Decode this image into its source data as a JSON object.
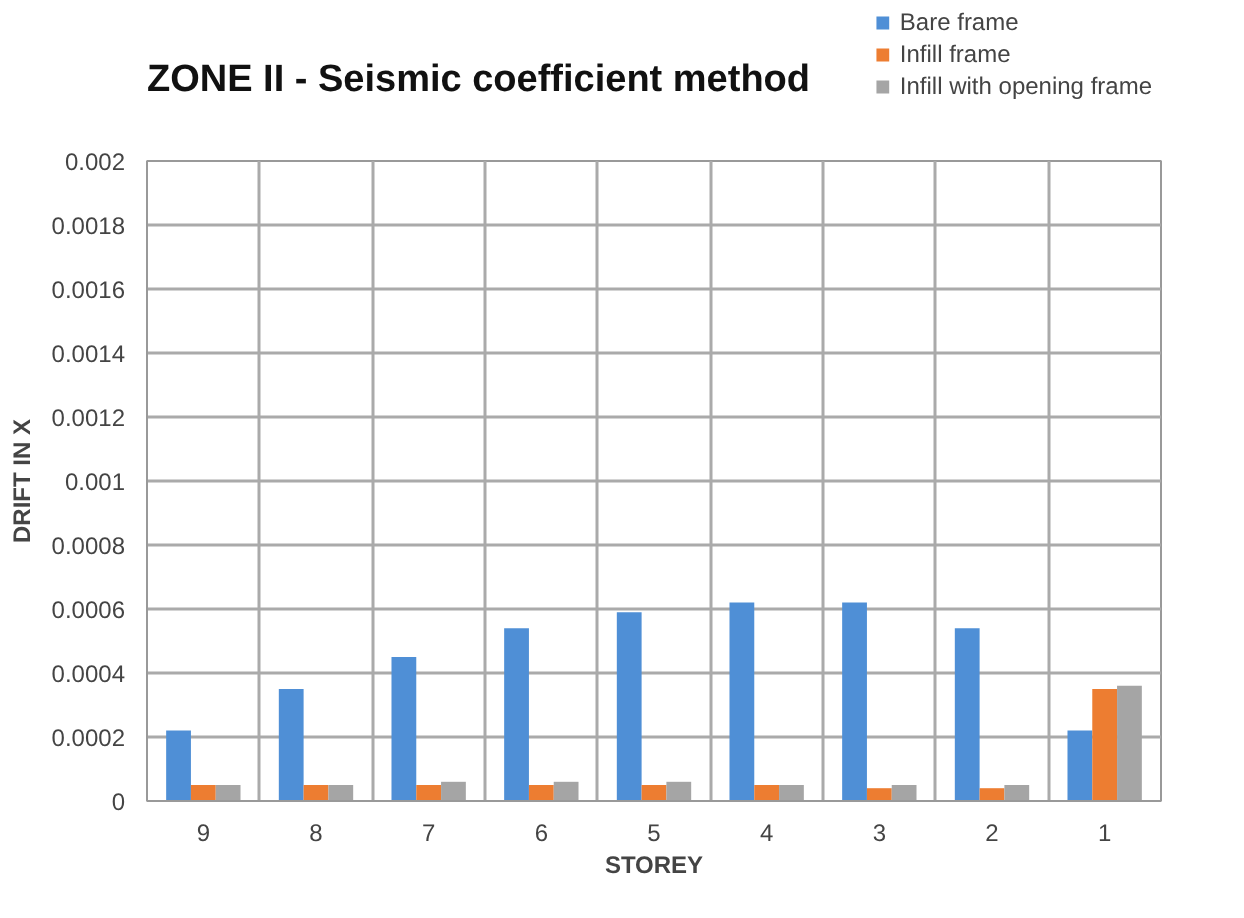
{
  "chart_data": {
    "type": "bar",
    "title": "ZONE II - Seismic coefficient method",
    "xlabel": "STOREY",
    "ylabel": "DRIFT IN X",
    "categories": [
      "9",
      "8",
      "7",
      "6",
      "5",
      "4",
      "3",
      "2",
      "1"
    ],
    "series": [
      {
        "name": "Bare frame",
        "color": "#4f8fd6",
        "values": [
          0.00022,
          0.00035,
          0.00045,
          0.00054,
          0.00059,
          0.00062,
          0.00062,
          0.00054,
          0.00022
        ]
      },
      {
        "name": "Infill frame",
        "color": "#ed7d31",
        "values": [
          5e-05,
          5e-05,
          5e-05,
          5e-05,
          5e-05,
          5e-05,
          4e-05,
          4e-05,
          0.00035
        ]
      },
      {
        "name": "Infill with opening frame",
        "color": "#a5a5a5",
        "values": [
          5e-05,
          5e-05,
          6e-05,
          6e-05,
          6e-05,
          5e-05,
          5e-05,
          5e-05,
          0.00036
        ]
      }
    ],
    "ylim": [
      0,
      0.002
    ],
    "yticks": [
      0,
      0.0002,
      0.0004,
      0.0006,
      0.0008,
      0.001,
      0.0012,
      0.0014,
      0.0016,
      0.0018,
      0.002
    ],
    "grid": true,
    "legend": "top right"
  }
}
